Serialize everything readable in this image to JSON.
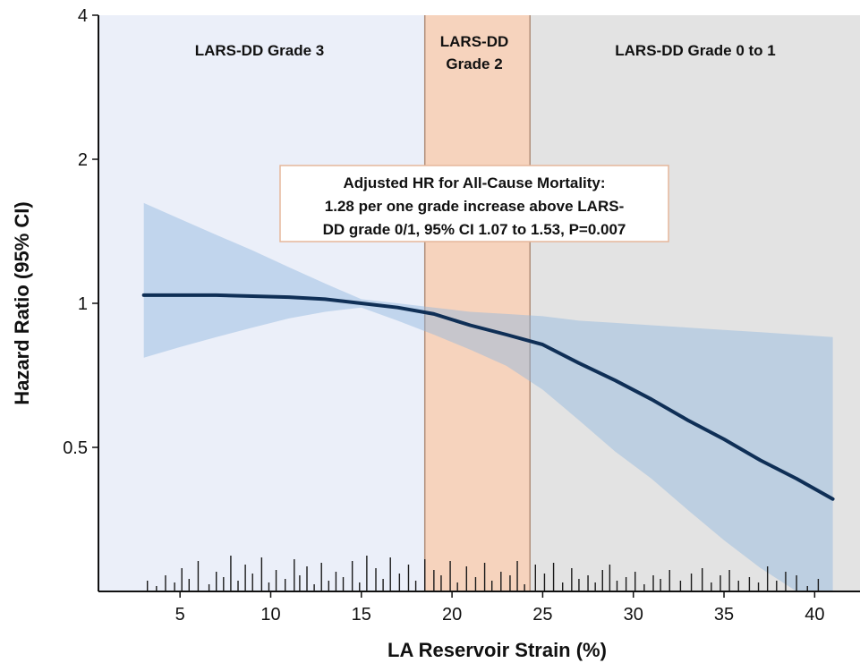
{
  "chart_data": {
    "type": "line",
    "title": "",
    "xlabel": "LA Reservoir Strain (%)",
    "ylabel": "Hazard Ratio (95% CI)",
    "xlim": [
      0.5,
      42.5
    ],
    "ylim": [
      0.25,
      4
    ],
    "y_scale": "log",
    "x_ticks": [
      5,
      10,
      15,
      20,
      25,
      30,
      35,
      40
    ],
    "x_tick_labels": [
      "5",
      "10",
      "15",
      "20",
      "25",
      "30",
      "35",
      "40"
    ],
    "y_ticks": [
      0.5,
      1,
      2,
      4
    ],
    "y_tick_labels": [
      "0.5",
      "1",
      "2",
      "4"
    ],
    "grid": false,
    "regions": [
      {
        "name": "LARS-DD Grade 3",
        "label_lines": [
          "LARS-DD Grade 3"
        ],
        "x_start": 0.5,
        "x_end": 18.5,
        "color": "#ebeff9"
      },
      {
        "name": "LARS-DD Grade 2",
        "label_lines": [
          "LARS-DD",
          "Grade 2"
        ],
        "x_start": 18.5,
        "x_end": 24.3,
        "color": "#f6d3bd"
      },
      {
        "name": "LARS-DD Grade 0 to 1",
        "label_lines": [
          "LARS-DD Grade 0 to 1"
        ],
        "x_start": 24.3,
        "x_end": 42.5,
        "color": "#e3e3e3"
      }
    ],
    "series": [
      {
        "color": "#0f2f56",
        "x": [
          3,
          5,
          7,
          9,
          11,
          13,
          15,
          17,
          19,
          21,
          23,
          25,
          27,
          29,
          31,
          33,
          35,
          37,
          39,
          41
        ],
        "y": [
          1.04,
          1.04,
          1.04,
          1.035,
          1.03,
          1.02,
          1.0,
          0.98,
          0.95,
          0.9,
          0.86,
          0.82,
          0.75,
          0.69,
          0.63,
          0.57,
          0.52,
          0.47,
          0.43,
          0.39
        ],
        "ci_lower": [
          0.77,
          0.81,
          0.85,
          0.89,
          0.93,
          0.96,
          0.98,
          0.92,
          0.86,
          0.8,
          0.74,
          0.66,
          0.57,
          0.49,
          0.43,
          0.37,
          0.32,
          0.28,
          0.25,
          0.22
        ],
        "ci_upper": [
          1.62,
          1.5,
          1.39,
          1.29,
          1.19,
          1.1,
          1.02,
          1.0,
          0.98,
          0.96,
          0.95,
          0.94,
          0.92,
          0.91,
          0.9,
          0.89,
          0.88,
          0.87,
          0.86,
          0.85
        ],
        "ci_color": "#8fb6de"
      }
    ],
    "rug_x": [
      3.2,
      3.7,
      4.2,
      4.7,
      5.1,
      5.5,
      6.0,
      6.6,
      7.0,
      7.4,
      7.8,
      8.2,
      8.6,
      9.0,
      9.5,
      9.9,
      10.3,
      10.8,
      11.3,
      11.6,
      12.0,
      12.4,
      12.8,
      13.2,
      13.6,
      14.0,
      14.5,
      14.9,
      15.3,
      15.8,
      16.2,
      16.6,
      17.1,
      17.6,
      18.0,
      18.5,
      19.0,
      19.4,
      19.9,
      20.3,
      20.8,
      21.3,
      21.8,
      22.2,
      22.7,
      23.2,
      23.6,
      24.0,
      24.6,
      25.1,
      25.6,
      26.1,
      26.6,
      27.0,
      27.5,
      27.9,
      28.3,
      28.7,
      29.1,
      29.6,
      30.1,
      30.6,
      31.1,
      31.5,
      32.0,
      32.6,
      33.2,
      33.8,
      34.3,
      34.8,
      35.3,
      35.8,
      36.4,
      36.9,
      37.4,
      37.9,
      38.4,
      39.0,
      39.6,
      40.2
    ],
    "annotation_lines": [
      "Adjusted HR for All-Cause Mortality:",
      "1.28 per one grade increase above LARS-",
      "DD grade 0/1, 95% CI 1.07 to 1.53, P=0.007"
    ]
  }
}
